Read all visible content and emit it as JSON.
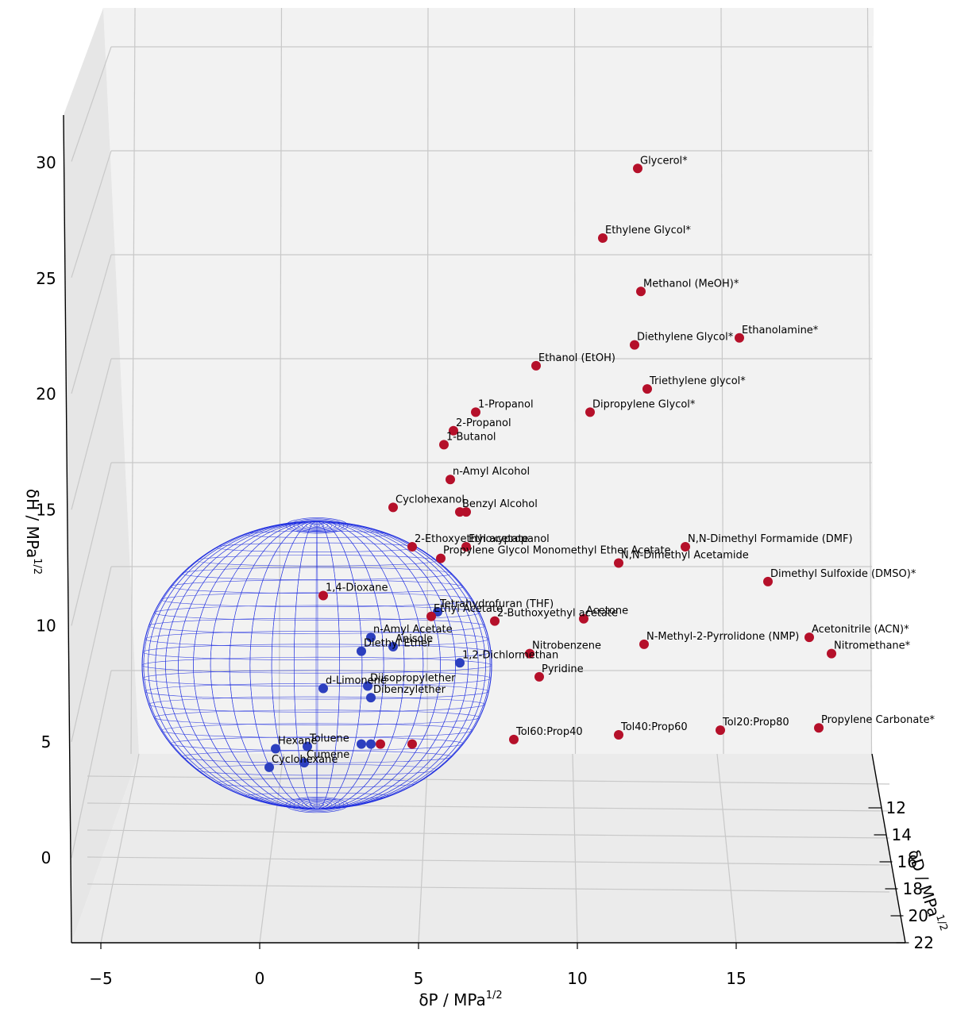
{
  "chart_data": {
    "type": "scatter",
    "projection": "3d",
    "x_axis": {
      "label": "δP / MPa",
      "label_sup": "1/2",
      "ticks": [
        "−5",
        "0",
        "5",
        "10",
        "15"
      ],
      "range": [
        -6,
        21
      ]
    },
    "y_axis": {
      "label": "δD / MPa",
      "label_sup": "1/2",
      "ticks": [
        "12",
        "14",
        "16",
        "18",
        "20",
        "22"
      ],
      "range": [
        11,
        22
      ]
    },
    "z_axis": {
      "label": "δH / MPa",
      "label_sup": "1/2",
      "ticks": [
        "0",
        "5",
        "10",
        "15",
        "20",
        "25",
        "30"
      ],
      "range": [
        -3,
        31
      ]
    },
    "grid": true,
    "colors": {
      "inside": "#2c3fbf",
      "outside": "#b5102a",
      "sphere": "#1f2ee0",
      "grid": "#c8c8c8",
      "pane": "#f2f2f2"
    },
    "sphere": {
      "center_dP": 1.8,
      "center_dH": 8.3,
      "radius_dP": 5.5,
      "radius_dH": 6.2
    },
    "points": [
      {
        "label": "Glycerol*",
        "dP": 11.9,
        "dH": 29.7,
        "group": "outside"
      },
      {
        "label": "Ethylene Glycol*",
        "dP": 10.8,
        "dH": 26.7,
        "group": "outside"
      },
      {
        "label": "Methanol (MeOH)*",
        "dP": 12.0,
        "dH": 24.4,
        "group": "outside"
      },
      {
        "label": "Ethanolamine*",
        "dP": 15.1,
        "dH": 22.4,
        "group": "outside"
      },
      {
        "label": "Diethylene Glycol*",
        "dP": 11.8,
        "dH": 22.1,
        "group": "outside"
      },
      {
        "label": "Ethanol (EtOH)",
        "dP": 8.7,
        "dH": 21.2,
        "group": "outside"
      },
      {
        "label": "Triethylene glycol*",
        "dP": 12.2,
        "dH": 20.2,
        "group": "outside"
      },
      {
        "label": "1-Propanol",
        "dP": 6.8,
        "dH": 19.2,
        "group": "outside"
      },
      {
        "label": "Dipropylene Glycol*",
        "dP": 10.4,
        "dH": 19.2,
        "group": "outside"
      },
      {
        "label": "2-Propanol",
        "dP": 6.1,
        "dH": 18.4,
        "group": "outside"
      },
      {
        "label": "1-Butanol",
        "dP": 5.8,
        "dH": 17.8,
        "group": "outside"
      },
      {
        "label": "n-Amyl Alcohol",
        "dP": 6.0,
        "dH": 16.3,
        "group": "outside"
      },
      {
        "label": "Cyclohexanol",
        "dP": 4.2,
        "dH": 15.1,
        "group": "outside"
      },
      {
        "label": "Benzyl Alcohol",
        "dP": 6.3,
        "dH": 14.9,
        "group": "outside"
      },
      {
        "label": "",
        "dP": 6.5,
        "dH": 14.9,
        "group": "outside"
      },
      {
        "label": "2-Ethoxyethyl acetate",
        "dP": 4.8,
        "dH": 13.4,
        "group": "outside"
      },
      {
        "label": "Ethoxypropanol",
        "dP": 6.5,
        "dH": 13.4,
        "group": "outside"
      },
      {
        "label": "Propylene Glycol Monomethyl Ether Acetate",
        "dP": 5.7,
        "dH": 12.9,
        "group": "outside"
      },
      {
        "label": "N,N-Dimethyl Formamide (DMF)",
        "dP": 13.4,
        "dH": 13.4,
        "group": "outside"
      },
      {
        "label": "N,N-Dimethyl Acetamide",
        "dP": 11.3,
        "dH": 12.7,
        "group": "outside"
      },
      {
        "label": "Dimethyl Sulfoxide (DMSO)*",
        "dP": 16.0,
        "dH": 11.9,
        "group": "outside"
      },
      {
        "label": "1,4-Dioxane",
        "dP": 2.0,
        "dH": 11.3,
        "group": "outside"
      },
      {
        "label": "Tetrahydrofuran (THF)",
        "dP": 5.6,
        "dH": 10.6,
        "group": "inside"
      },
      {
        "label": "Ethyl Acetate",
        "dP": 5.4,
        "dH": 10.4,
        "group": "outside"
      },
      {
        "label": "2-Buthoxyethyl acetate",
        "dP": 7.4,
        "dH": 10.2,
        "group": "outside"
      },
      {
        "label": "Acetone",
        "dP": 10.2,
        "dH": 10.3,
        "group": "outside"
      },
      {
        "label": "Acetonitrile (ACN)*",
        "dP": 17.3,
        "dH": 9.5,
        "group": "outside"
      },
      {
        "label": "N-Methyl-2-Pyrrolidone (NMP)",
        "dP": 12.1,
        "dH": 9.2,
        "group": "outside"
      },
      {
        "label": "n-Amyl Acetate",
        "dP": 3.5,
        "dH": 9.5,
        "group": "inside"
      },
      {
        "label": "Anisole",
        "dP": 4.2,
        "dH": 9.1,
        "group": "inside"
      },
      {
        "label": "Diethyl Ether",
        "dP": 3.2,
        "dH": 8.9,
        "group": "inside"
      },
      {
        "label": "Nitromethane*",
        "dP": 18.0,
        "dH": 8.8,
        "group": "outside"
      },
      {
        "label": "Nitrobenzene",
        "dP": 8.5,
        "dH": 8.8,
        "group": "outside"
      },
      {
        "label": "1,2-Dichlormethan",
        "dP": 6.3,
        "dH": 8.4,
        "group": "inside"
      },
      {
        "label": "Pyridine",
        "dP": 8.8,
        "dH": 7.8,
        "group": "outside"
      },
      {
        "label": "d-Limonene",
        "dP": 2.0,
        "dH": 7.3,
        "group": "inside"
      },
      {
        "label": "Diisopropylether",
        "dP": 3.4,
        "dH": 7.4,
        "group": "inside"
      },
      {
        "label": "Dibenzylether",
        "dP": 3.5,
        "dH": 6.9,
        "group": "inside"
      },
      {
        "label": "Propylene Carbonate*",
        "dP": 17.6,
        "dH": 5.6,
        "group": "outside"
      },
      {
        "label": "Tol20:Prop80",
        "dP": 14.5,
        "dH": 5.5,
        "group": "outside"
      },
      {
        "label": "Tol40:Prop60",
        "dP": 11.3,
        "dH": 5.3,
        "group": "outside"
      },
      {
        "label": "Tol60:Prop40",
        "dP": 8.0,
        "dH": 5.1,
        "group": "outside"
      },
      {
        "label": "",
        "dP": 4.8,
        "dH": 4.9,
        "group": "outside"
      },
      {
        "label": "",
        "dP": 3.8,
        "dH": 4.9,
        "group": "outside"
      },
      {
        "label": "",
        "dP": 3.5,
        "dH": 4.9,
        "group": "inside"
      },
      {
        "label": "",
        "dP": 3.2,
        "dH": 4.9,
        "group": "inside"
      },
      {
        "label": "Toluene",
        "dP": 1.5,
        "dH": 4.8,
        "group": "inside"
      },
      {
        "label": "Hexane",
        "dP": 0.5,
        "dH": 4.7,
        "group": "inside"
      },
      {
        "label": "Cumene",
        "dP": 1.4,
        "dH": 4.1,
        "group": "inside"
      },
      {
        "label": "Cyclohexane",
        "dP": 0.3,
        "dH": 3.9,
        "group": "inside"
      }
    ]
  }
}
